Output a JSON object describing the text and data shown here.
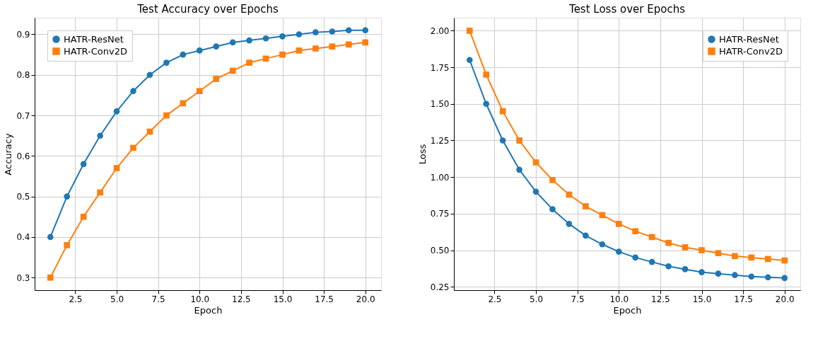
{
  "chart_data": [
    {
      "type": "line",
      "title": "Test Accuracy over Epochs",
      "xlabel": "Epoch",
      "ylabel": "Accuracy",
      "legend": "top left",
      "grid": true,
      "line_style": "solid",
      "x": [
        1,
        2,
        3,
        4,
        5,
        6,
        7,
        8,
        9,
        10,
        11,
        12,
        13,
        14,
        15,
        16,
        17,
        18,
        19,
        20
      ],
      "xlim": [
        0.05,
        20.95
      ],
      "ylim": [
        0.269,
        0.941
      ],
      "xticks": [
        {
          "value": 2.5,
          "label": "2.5"
        },
        {
          "value": 5,
          "label": "5.0"
        },
        {
          "value": 7.5,
          "label": "7.5"
        },
        {
          "value": 10,
          "label": "10.0"
        },
        {
          "value": 12.5,
          "label": "12.5"
        },
        {
          "value": 15,
          "label": "15.0"
        },
        {
          "value": 17.5,
          "label": "17.5"
        },
        {
          "value": 20,
          "label": "20.0"
        }
      ],
      "yticks": [
        0.3,
        0.4,
        0.5,
        0.6,
        0.7,
        0.8,
        0.9
      ],
      "series": [
        {
          "name": "HATR-ResNet",
          "color": "#1f77b4",
          "marker": "circle",
          "values": [
            0.4,
            0.5,
            0.58,
            0.65,
            0.71,
            0.76,
            0.8,
            0.83,
            0.85,
            0.86,
            0.87,
            0.88,
            0.885,
            0.89,
            0.895,
            0.9,
            0.905,
            0.907,
            0.91,
            0.91
          ]
        },
        {
          "name": "HATR-Conv2D",
          "color": "#ff7f0e",
          "marker": "square",
          "values": [
            0.3,
            0.38,
            0.45,
            0.51,
            0.57,
            0.62,
            0.66,
            0.7,
            0.73,
            0.76,
            0.79,
            0.81,
            0.83,
            0.84,
            0.85,
            0.86,
            0.865,
            0.87,
            0.875,
            0.88
          ]
        }
      ]
    },
    {
      "type": "line",
      "title": "Test Loss over Epochs",
      "xlabel": "Epoch",
      "ylabel": "Loss",
      "legend": "top right",
      "grid": true,
      "line_style": "solid",
      "x": [
        1,
        2,
        3,
        4,
        5,
        6,
        7,
        8,
        9,
        10,
        11,
        12,
        13,
        14,
        15,
        16,
        17,
        18,
        19,
        20
      ],
      "xlim": [
        0.05,
        20.95
      ],
      "ylim": [
        0.227,
        2.089
      ],
      "xticks": [
        {
          "value": 2.5,
          "label": "2.5"
        },
        {
          "value": 5,
          "label": "5.0"
        },
        {
          "value": 7.5,
          "label": "7.5"
        },
        {
          "value": 10,
          "label": "10.0"
        },
        {
          "value": 12.5,
          "label": "12.5"
        },
        {
          "value": 15,
          "label": "15.0"
        },
        {
          "value": 17.5,
          "label": "17.5"
        },
        {
          "value": 20,
          "label": "20.0"
        }
      ],
      "yticks": [
        {
          "value": 0.25,
          "label": "0.25"
        },
        {
          "value": 0.5,
          "label": "0.50"
        },
        {
          "value": 0.75,
          "label": "0.75"
        },
        {
          "value": 1,
          "label": "1.00"
        },
        {
          "value": 1.25,
          "label": "1.25"
        },
        {
          "value": 1.5,
          "label": "1.50"
        },
        {
          "value": 1.75,
          "label": "1.75"
        },
        {
          "value": 2,
          "label": "2.00"
        }
      ],
      "series": [
        {
          "name": "HATR-ResNet",
          "color": "#1f77b4",
          "marker": "circle",
          "values": [
            1.8,
            1.5,
            1.25,
            1.05,
            0.9,
            0.78,
            0.68,
            0.6,
            0.54,
            0.49,
            0.45,
            0.42,
            0.39,
            0.37,
            0.35,
            0.34,
            0.33,
            0.32,
            0.315,
            0.31
          ]
        },
        {
          "name": "HATR-Conv2D",
          "color": "#ff7f0e",
          "marker": "square",
          "values": [
            2.0,
            1.7,
            1.45,
            1.25,
            1.1,
            0.98,
            0.88,
            0.8,
            0.74,
            0.68,
            0.63,
            0.59,
            0.55,
            0.52,
            0.5,
            0.48,
            0.46,
            0.45,
            0.44,
            0.43
          ]
        }
      ]
    }
  ]
}
